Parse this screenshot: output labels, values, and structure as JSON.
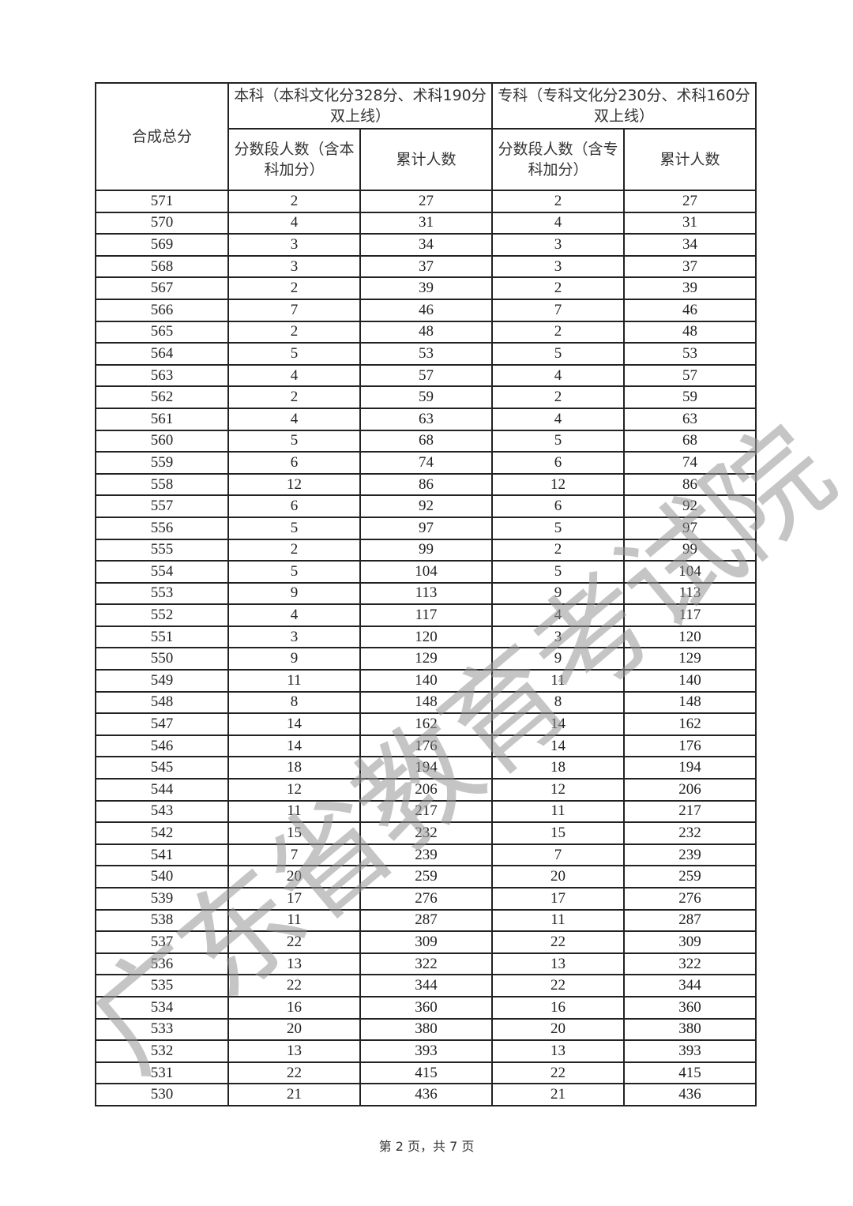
{
  "table": {
    "col_score": "合成总分",
    "group_benke": "本科（本科文化分328分、术科190分双上线）",
    "group_zhuanke": "专科（专科文化分230分、术科160分双上线）",
    "benke_count": "分数段人数（含本科加分）",
    "benke_cum": "累计人数",
    "zhuanke_count": "分数段人数（含专科加分）",
    "zhuanke_cum": "累计人数",
    "rows": [
      [
        571,
        2,
        27,
        2,
        27
      ],
      [
        570,
        4,
        31,
        4,
        31
      ],
      [
        569,
        3,
        34,
        3,
        34
      ],
      [
        568,
        3,
        37,
        3,
        37
      ],
      [
        567,
        2,
        39,
        2,
        39
      ],
      [
        566,
        7,
        46,
        7,
        46
      ],
      [
        565,
        2,
        48,
        2,
        48
      ],
      [
        564,
        5,
        53,
        5,
        53
      ],
      [
        563,
        4,
        57,
        4,
        57
      ],
      [
        562,
        2,
        59,
        2,
        59
      ],
      [
        561,
        4,
        63,
        4,
        63
      ],
      [
        560,
        5,
        68,
        5,
        68
      ],
      [
        559,
        6,
        74,
        6,
        74
      ],
      [
        558,
        12,
        86,
        12,
        86
      ],
      [
        557,
        6,
        92,
        6,
        92
      ],
      [
        556,
        5,
        97,
        5,
        97
      ],
      [
        555,
        2,
        99,
        2,
        99
      ],
      [
        554,
        5,
        104,
        5,
        104
      ],
      [
        553,
        9,
        113,
        9,
        113
      ],
      [
        552,
        4,
        117,
        4,
        117
      ],
      [
        551,
        3,
        120,
        3,
        120
      ],
      [
        550,
        9,
        129,
        9,
        129
      ],
      [
        549,
        11,
        140,
        11,
        140
      ],
      [
        548,
        8,
        148,
        8,
        148
      ],
      [
        547,
        14,
        162,
        14,
        162
      ],
      [
        546,
        14,
        176,
        14,
        176
      ],
      [
        545,
        18,
        194,
        18,
        194
      ],
      [
        544,
        12,
        206,
        12,
        206
      ],
      [
        543,
        11,
        217,
        11,
        217
      ],
      [
        542,
        15,
        232,
        15,
        232
      ],
      [
        541,
        7,
        239,
        7,
        239
      ],
      [
        540,
        20,
        259,
        20,
        259
      ],
      [
        539,
        17,
        276,
        17,
        276
      ],
      [
        538,
        11,
        287,
        11,
        287
      ],
      [
        537,
        22,
        309,
        22,
        309
      ],
      [
        536,
        13,
        322,
        13,
        322
      ],
      [
        535,
        22,
        344,
        22,
        344
      ],
      [
        534,
        16,
        360,
        16,
        360
      ],
      [
        533,
        20,
        380,
        20,
        380
      ],
      [
        532,
        13,
        393,
        13,
        393
      ],
      [
        531,
        22,
        415,
        22,
        415
      ],
      [
        530,
        21,
        436,
        21,
        436
      ]
    ]
  },
  "footer": "第 2 页，共 7 页",
  "watermark": "广东省教育考试院"
}
